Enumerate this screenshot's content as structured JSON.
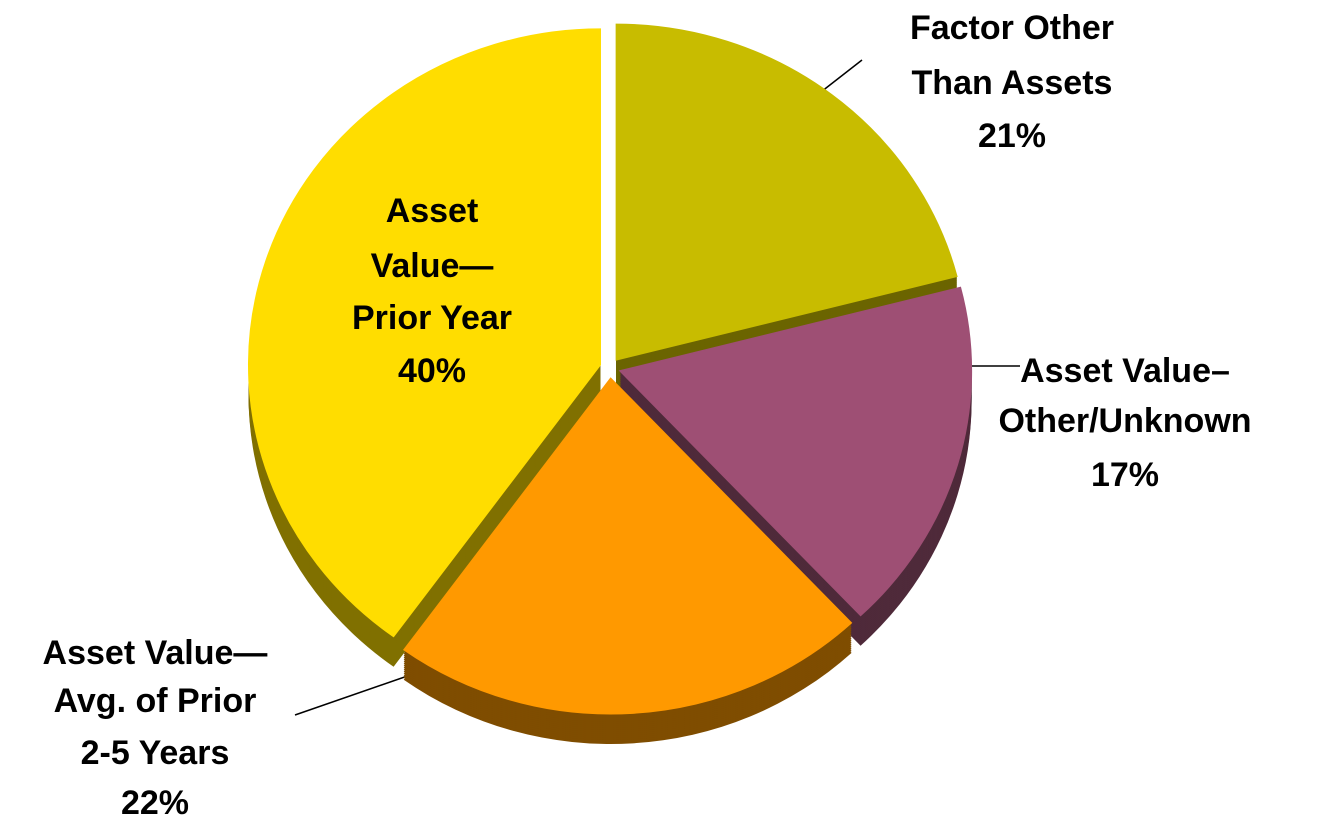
{
  "chart_data": {
    "type": "pie",
    "categories": [
      [
        "Factor Other",
        "Than Assets"
      ],
      [
        "Asset Value–",
        "Other/Unknown"
      ],
      [
        "Asset Value—",
        "Avg. of Prior",
        "2-5 Years"
      ],
      [
        "Asset",
        "Value—",
        "Prior Year"
      ]
    ],
    "values": [
      21,
      17,
      22,
      40
    ],
    "value_labels": [
      "21%",
      "17%",
      "22%",
      "40%"
    ],
    "colors": [
      "#C8BC00",
      "#9E4F74",
      "#FF9900",
      "#FFDD00"
    ],
    "side_colors": [
      "#6B6400",
      "#4F2A3A",
      "#7F4D00",
      "#807000"
    ]
  }
}
